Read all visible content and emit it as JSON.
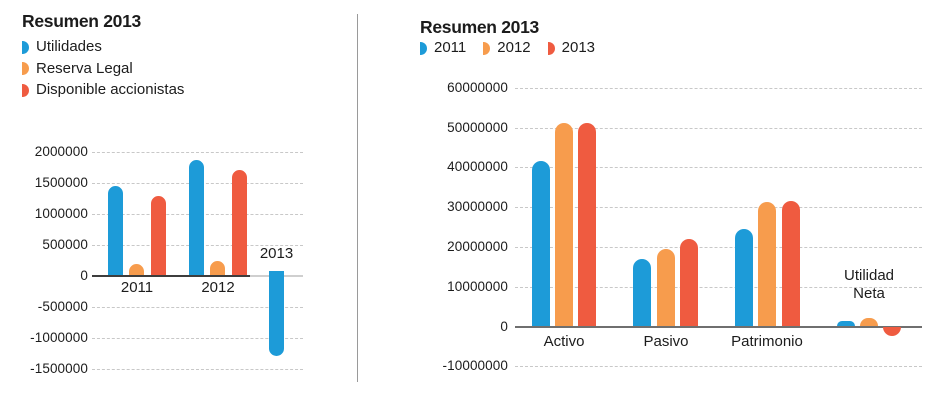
{
  "palette": {
    "background": "#ffffff",
    "text": "#1c1c1c",
    "gridline": "#c8c8c8",
    "axis_left_chart": "#3d3d3d",
    "axis_right_chart": "#6f6f6f",
    "divider": "#9a9a9a",
    "series_blue": "#1D9BD8",
    "series_orange": "#F79C4D",
    "series_red": "#EF5B40"
  },
  "chart_data": [
    {
      "type": "bar",
      "title": "Resumen 2013",
      "legend_position": "left-stacked",
      "legend": [
        "Utilidades",
        "Reserva Legal",
        "Disponible accionistas"
      ],
      "categories": [
        "2011",
        "2012",
        "2013"
      ],
      "series": [
        {
          "name": "Utilidades",
          "color": "#1D9BD8",
          "values": [
            1450000,
            1870000,
            -1300000
          ]
        },
        {
          "name": "Reserva Legal",
          "color": "#F79C4D",
          "values": [
            190000,
            230000,
            null
          ]
        },
        {
          "name": "Disponible accionistas",
          "color": "#EF5B40",
          "values": [
            1280000,
            1700000,
            null
          ]
        }
      ],
      "yticks": [
        2000000,
        1500000,
        1000000,
        500000,
        0,
        -500000,
        -1000000,
        -1500000
      ],
      "ylim": [
        -1500000,
        2000000
      ],
      "grid": "dashed-horizontal",
      "bar_cap": "rounded"
    },
    {
      "type": "bar",
      "title": "Resumen 2013",
      "legend_position": "top-row",
      "legend": [
        "2011",
        "2012",
        "2013"
      ],
      "categories": [
        "Activo",
        "Pasivo",
        "Patrimonio",
        "Utilidad Neta"
      ],
      "series": [
        {
          "name": "2011",
          "color": "#1D9BD8",
          "values": [
            41600000,
            17000000,
            24500000,
            1500000
          ]
        },
        {
          "name": "2012",
          "color": "#F79C4D",
          "values": [
            51200000,
            19400000,
            31200000,
            2200000
          ]
        },
        {
          "name": "2013",
          "color": "#EF5B40",
          "values": [
            51200000,
            21900000,
            31600000,
            -2300000
          ]
        }
      ],
      "yticks": [
        60000000,
        50000000,
        40000000,
        30000000,
        20000000,
        10000000,
        0,
        -10000000
      ],
      "ylim": [
        -10000000,
        60000000
      ],
      "grid": "dashed-horizontal",
      "bar_cap": "rounded"
    }
  ]
}
